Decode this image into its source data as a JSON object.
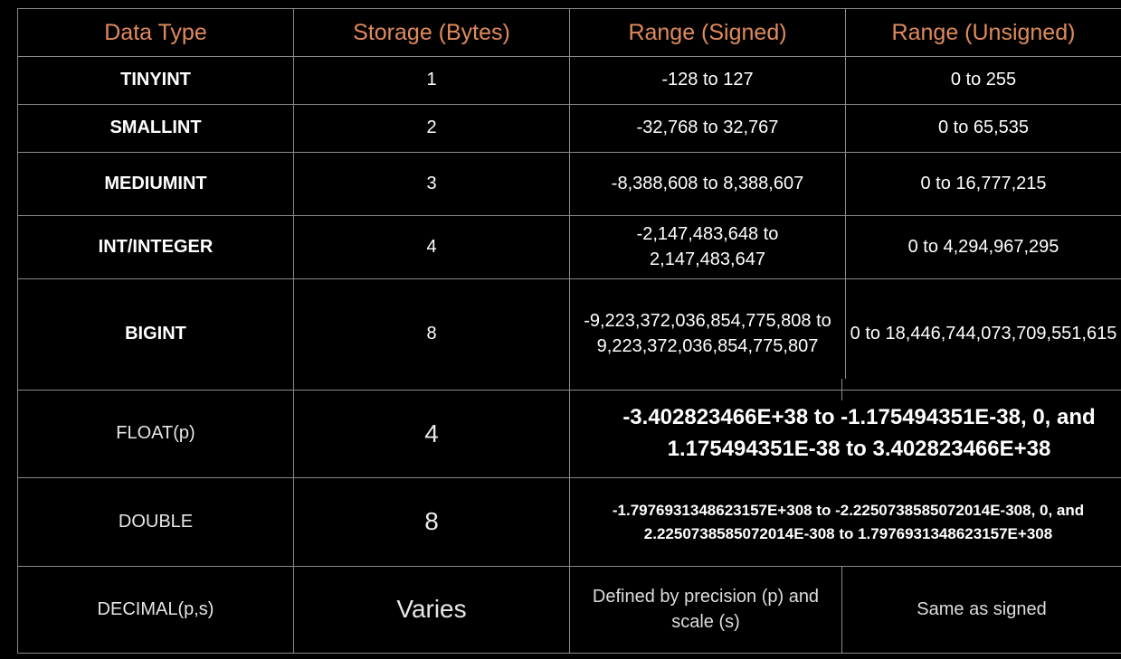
{
  "colors": {
    "background": "#000000",
    "header_text": "#e08a5c",
    "body_text": "#ffffff",
    "grid_line": "#8a8a8a"
  },
  "table": {
    "headers": [
      "Data Type",
      "Storage (Bytes)",
      "Range (Signed)",
      "Range (Unsigned)"
    ],
    "rows": [
      {
        "type": "TINYINT",
        "storage": "1",
        "signed": "-128 to 127",
        "unsigned": "0 to 255"
      },
      {
        "type": "SMALLINT",
        "storage": "2",
        "signed": "-32,768 to 32,767",
        "unsigned": "0 to 65,535"
      },
      {
        "type": "MEDIUMINT",
        "storage": "3",
        "signed": "-8,388,608 to 8,388,607",
        "unsigned": "0 to 16,777,215"
      },
      {
        "type": "INT/INTEGER",
        "storage": "4",
        "signed": "-2,147,483,648 to 2,147,483,647",
        "unsigned": "0 to 4,294,967,295"
      },
      {
        "type": "BIGINT",
        "storage": "8",
        "signed": "-9,223,372,036,854,775,808 to 9,223,372,036,854,775,807",
        "unsigned": "0 to 18,446,744,073,709,551,615"
      },
      {
        "type": "FLOAT(p)",
        "storage": "4",
        "range": "-3.402823466E+38 to -1.175494351E-38, 0, and 1.175494351E-38 to 3.402823466E+38"
      },
      {
        "type": "DOUBLE",
        "storage": "8",
        "range": "-1.7976931348623157E+308 to -2.2250738585072014E-308, 0, and 2.2250738585072014E-308 to 1.7976931348623157E+308"
      },
      {
        "type": "DECIMAL(p,s)",
        "storage": "Varies",
        "signed": "Defined by precision (p) and scale (s)",
        "unsigned": "Same as signed"
      }
    ]
  }
}
